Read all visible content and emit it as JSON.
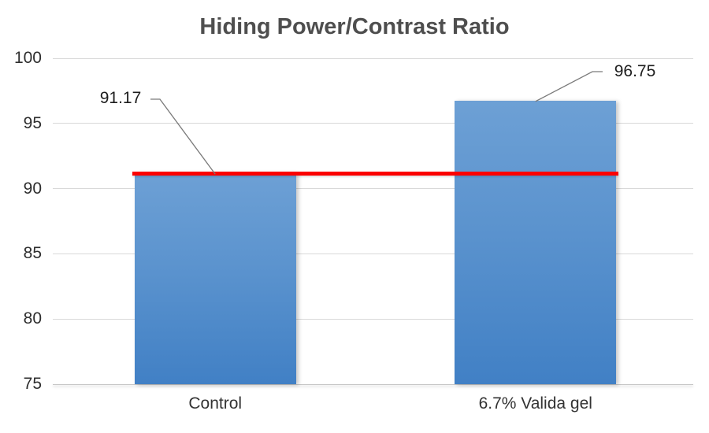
{
  "title": "Hiding Power/Contrast Ratio",
  "chart_data": {
    "type": "bar",
    "title": "Hiding Power/Contrast Ratio",
    "categories": [
      "Control",
      "6.7% Valida gel"
    ],
    "values": [
      91.17,
      96.75
    ],
    "data_labels": [
      "91.17",
      "96.75"
    ],
    "yticks": [
      75,
      80,
      85,
      90,
      95,
      100
    ],
    "ylim": [
      75,
      100
    ],
    "xlabel": "",
    "ylabel": "",
    "grid": true,
    "legend_position": "none",
    "reference_line": {
      "value": 91.17,
      "color": "#FB0000"
    },
    "colors": {
      "bar_gradient_top": "#6DA0D5",
      "bar_gradient_bottom": "#4180C5",
      "gridline": "#D9D9D9",
      "title_text": "#4E4E4E",
      "axis_text": "#2E2E2E",
      "leader_line": "#7A7A7A"
    }
  }
}
